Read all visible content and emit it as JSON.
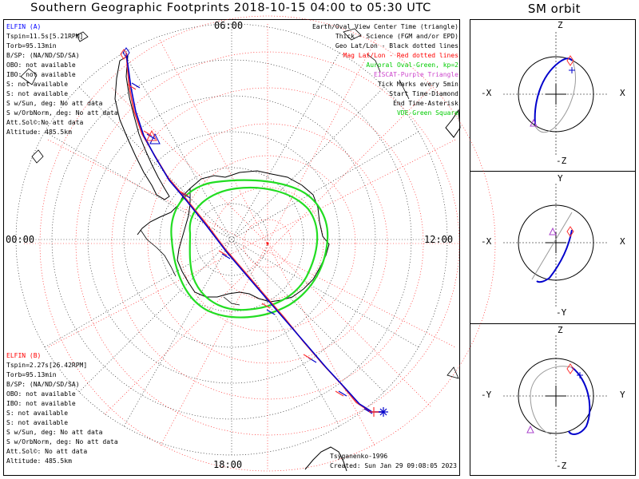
{
  "title": "Southern Geographic Footprints 2018-10-15 04:00 to 05:30 UTC",
  "sm_title": "SM orbit",
  "time_labels": {
    "top": "06:00",
    "left": "00:00",
    "right": "12:00",
    "bottom": "18:00"
  },
  "elfin_a": {
    "name": "ELFIN (A)",
    "color": "#0000ff",
    "lines": [
      "Tspin=11.5s[5.21RPM]",
      "Torb=95.13min",
      "B/SP: (NA/ND/SD/SA)",
      "OBO: not available",
      "IBO: not available",
      "S: not available",
      "S: not available",
      "S w/Sun, deg: No att data",
      "S w/OrbNorm, deg: No att data",
      "Att.Sol©:No att data",
      "Altitude: 485.5km"
    ]
  },
  "elfin_b": {
    "name": "ELFIN (B)",
    "color": "#ff0000",
    "lines": [
      "Tspin=2.27s[26.42RPM]",
      "Torb=95.13min",
      "B/SP: (NA/ND/SD/SA)",
      "OBO: not available",
      "IBO: not available",
      "S: not available",
      "S: not available",
      "S w/Sun, deg: No att data",
      "S w/OrbNorm, deg: No att data",
      "Att.Sol©: No att data",
      "Altitude: 485.5km"
    ]
  },
  "legend": [
    {
      "text": "Earth/Oval View Center Time (triangle)",
      "color": "#000000"
    },
    {
      "text": "Thick - Science (FGM and/or EPD)",
      "color": "#000000"
    },
    {
      "text": "Geo Lat/Lon - Black dotted lines",
      "color": "#000000"
    },
    {
      "text": "Mag Lat/Lon - Red dotted lines",
      "color": "#ff0000"
    },
    {
      "text": "Auroral Oval-Green, kp=2",
      "color": "#00cc00"
    },
    {
      "text": "EISCAT-Purple Triangle",
      "color": "#cc44cc"
    },
    {
      "text": "Tick Marks every 5min",
      "color": "#000000"
    },
    {
      "text": "Start Time-Diamond",
      "color": "#000000"
    },
    {
      "text": "End Time-Asterisk",
      "color": "#000000"
    },
    {
      "text": "VDE-Green Square",
      "color": "#00cc00"
    }
  ],
  "credit": {
    "model": "Tsyganenko-1996",
    "created": "Created: Sun Jan 29 09:08:05 2023"
  },
  "sm_panels": [
    {
      "top": "Z",
      "bottom": "-Z",
      "left": "-X",
      "right": "X"
    },
    {
      "top": "Y",
      "bottom": "-Y",
      "left": "-X",
      "right": "X"
    },
    {
      "top": "Z",
      "bottom": "-Z",
      "left": "-Y",
      "right": "Y"
    }
  ],
  "colors": {
    "aurora": "#22dd22",
    "mag_grid": "#ff0000",
    "orbit_a": "#0000cc",
    "orbit_b": "#ff3333",
    "eiscat": "#aa44cc"
  }
}
